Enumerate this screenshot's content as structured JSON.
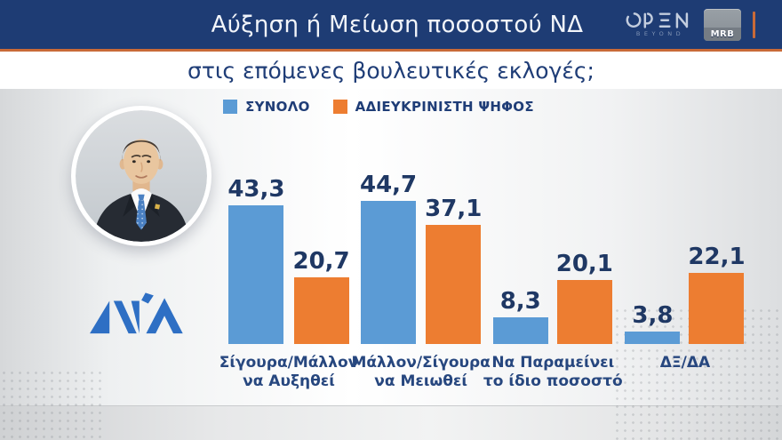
{
  "header": {
    "title": "Αύξηση ή Μείωση ποσοστού ΝΔ",
    "channel_logo": {
      "name": "OPEN",
      "tagline": "BEYOND"
    },
    "pollster_logo": "MRB"
  },
  "subtitle": "στις επόμενες βουλευτικές εκλογές;",
  "legend": {
    "items": [
      {
        "label": "ΣΥΝΟΛΟ",
        "color": "#5b9bd5"
      },
      {
        "label": "ΑΔΙΕΥΚΡΙΝΙΣΤΗ ΨΗΦΟΣ",
        "color": "#ed7d31"
      }
    ]
  },
  "left_panel": {
    "photo_subject": "Κυριάκος Μητσοτάκης",
    "party_logo": "ΝΔ"
  },
  "chart_data": {
    "type": "bar",
    "title": "Αύξηση ή Μείωση ποσοστού ΝΔ στις επόμενες βουλευτικές εκλογές;",
    "categories": [
      "Σίγουρα/Μάλλον να Αυξηθεί",
      "Μάλλον/Σίγουρα να Μειωθεί",
      "Να Παραμείνει το ίδιο ποσοστό",
      "ΔΞ/ΔΑ"
    ],
    "category_lines": [
      [
        "Σίγουρα/Μάλλον",
        "να Αυξηθεί"
      ],
      [
        "Μάλλον/Σίγουρα",
        "να Μειωθεί"
      ],
      [
        "Να Παραμείνει",
        "το ίδιο ποσοστό"
      ],
      [
        "ΔΞ/ΔΑ"
      ]
    ],
    "series": [
      {
        "name": "ΣΥΝΟΛΟ",
        "color": "#5b9bd5",
        "values": [
          43.3,
          44.7,
          8.3,
          3.8
        ],
        "labels": [
          "43,3",
          "44,7",
          "8,3",
          "3,8"
        ]
      },
      {
        "name": "ΑΔΙΕΥΚΡΙΝΙΣΤΗ ΨΗΦΟΣ",
        "color": "#ed7d31",
        "values": [
          20.7,
          37.1,
          20.1,
          22.1
        ],
        "labels": [
          "20,7",
          "37,1",
          "20,1",
          "22,1"
        ]
      }
    ],
    "ylim": [
      0,
      50
    ],
    "grid": false,
    "legend_position": "top",
    "decimal_separator": ","
  },
  "colors": {
    "header_bg": "#1e3c74",
    "accent_orange_line": "#c96a38",
    "subtitle_navy": "#1f3d77",
    "value_label_navy": "#1f3864",
    "category_label_navy": "#27477f",
    "bar_blue": "#5b9bd5",
    "bar_orange": "#ed7d31",
    "nd_logo_blue": "#2e6fc4"
  }
}
